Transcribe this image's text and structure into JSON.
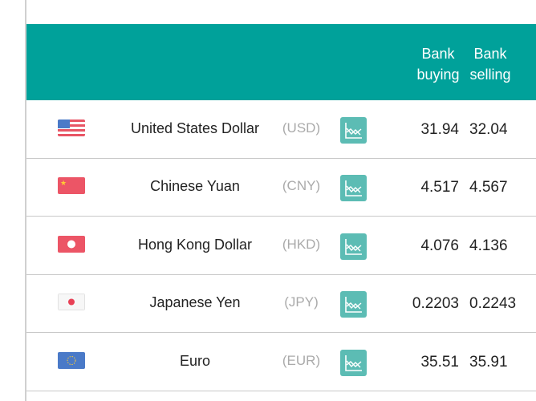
{
  "colors": {
    "header": "#00a19a",
    "chart_icon": "#5cbcb4"
  },
  "header": {
    "buying": [
      "Bank",
      "buying"
    ],
    "selling": [
      "Bank",
      "selling"
    ]
  },
  "rows": [
    {
      "flag": "us-flag-icon",
      "name": "United States Dollar",
      "code": "(USD)",
      "buying": "31.94",
      "selling": "32.04"
    },
    {
      "flag": "cn-flag-icon",
      "name": "Chinese Yuan",
      "code": "(CNY)",
      "buying": "4.517",
      "selling": "4.567"
    },
    {
      "flag": "hk-flag-icon",
      "name": "Hong Kong Dollar",
      "code": "(HKD)",
      "buying": "4.076",
      "selling": "4.136"
    },
    {
      "flag": "jp-flag-icon",
      "name": "Japanese Yen",
      "code": "(JPY)",
      "buying": "0.2203",
      "selling": "0.2243"
    },
    {
      "flag": "eu-flag-icon",
      "name": "Euro",
      "code": "(EUR)",
      "buying": "35.51",
      "selling": "35.91"
    }
  ]
}
